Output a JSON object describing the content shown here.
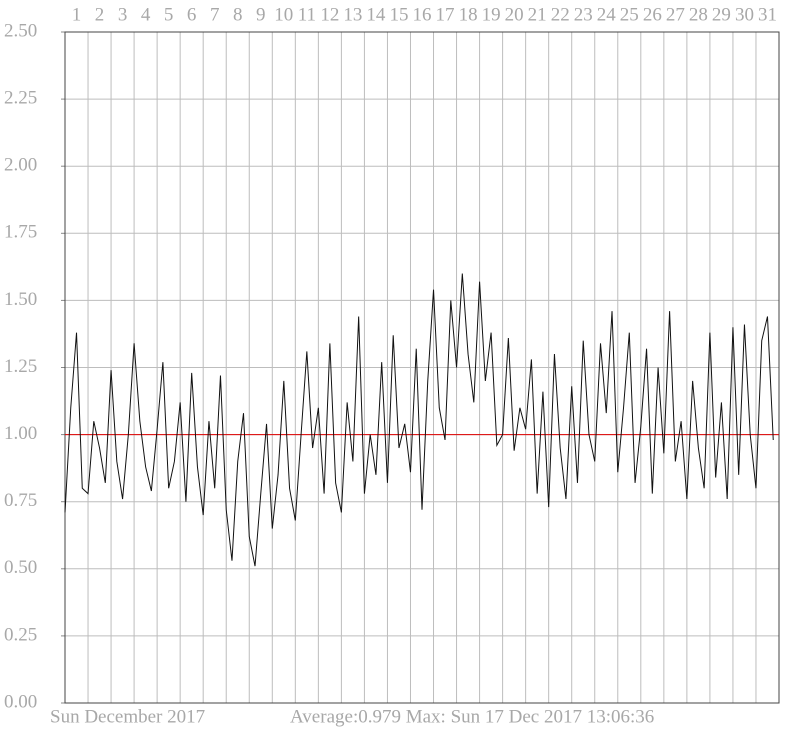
{
  "chart_data": {
    "type": "line",
    "x_label": "Sun  December 2017",
    "annotation": "Average:0.979 Max: Sun 17 Dec 2017  13:06:36",
    "xlim": [
      1,
      32
    ],
    "xticks": [
      1,
      2,
      3,
      4,
      5,
      6,
      7,
      8,
      9,
      10,
      11,
      12,
      13,
      14,
      15,
      16,
      17,
      18,
      19,
      20,
      21,
      22,
      23,
      24,
      25,
      26,
      27,
      28,
      29,
      30,
      31
    ],
    "ylim": [
      0,
      2.5
    ],
    "yticks": [
      {
        "value": 0,
        "label": "0.00"
      },
      {
        "value": 0.25,
        "label": "0.25"
      },
      {
        "value": 0.5,
        "label": "0.50"
      },
      {
        "value": 0.75,
        "label": "0.75"
      },
      {
        "value": 1,
        "label": "1.00"
      },
      {
        "value": 1.25,
        "label": "1.25"
      },
      {
        "value": 1.5,
        "label": "1.50"
      },
      {
        "value": 1.75,
        "label": "1.75"
      },
      {
        "value": 2,
        "label": "2.00"
      },
      {
        "value": 2.25,
        "label": "2.25"
      },
      {
        "value": 2.5,
        "label": "2.50"
      }
    ],
    "grid": true,
    "reference_line": {
      "value": 1,
      "color": "#e00000"
    },
    "x": [
      1,
      1.25,
      1.5,
      1.75,
      2,
      2.25,
      2.5,
      2.75,
      3,
      3.25,
      3.5,
      3.75,
      4,
      4.25,
      4.5,
      4.75,
      5,
      5.25,
      5.5,
      5.75,
      6,
      6.25,
      6.5,
      6.75,
      7,
      7.25,
      7.5,
      7.75,
      8,
      8.25,
      8.5,
      8.75,
      9,
      9.25,
      9.5,
      9.75,
      10,
      10.25,
      10.5,
      10.75,
      11,
      11.25,
      11.5,
      11.75,
      12,
      12.25,
      12.5,
      12.75,
      13,
      13.25,
      13.5,
      13.75,
      14,
      14.25,
      14.5,
      14.75,
      15,
      15.25,
      15.5,
      15.75,
      16,
      16.25,
      16.5,
      16.75,
      17,
      17.25,
      17.5,
      17.75,
      18,
      18.25,
      18.5,
      18.75,
      19,
      19.25,
      19.5,
      19.75,
      20,
      20.25,
      20.5,
      20.75,
      21,
      21.25,
      21.5,
      21.75,
      22,
      22.25,
      22.5,
      22.75,
      23,
      23.25,
      23.5,
      23.75,
      24,
      24.25,
      24.5,
      24.75,
      25,
      25.25,
      25.5,
      25.75,
      26,
      26.25,
      26.5,
      26.75,
      27,
      27.25,
      27.5,
      27.75,
      28,
      28.25,
      28.5,
      28.75,
      29,
      29.25,
      29.5,
      29.75,
      30,
      30.25,
      30.5,
      30.75,
      31,
      31.25,
      31.5,
      31.75
    ],
    "series": [
      {
        "color": "#111111",
        "values": [
          0.71,
          1.1,
          1.38,
          0.8,
          0.78,
          1.05,
          0.95,
          0.82,
          1.24,
          0.9,
          0.76,
          1.0,
          1.34,
          1.05,
          0.88,
          0.79,
          1.02,
          1.27,
          0.8,
          0.9,
          1.12,
          0.75,
          1.23,
          0.88,
          0.7,
          1.05,
          0.8,
          1.22,
          0.72,
          0.53,
          0.9,
          1.08,
          0.62,
          0.51,
          0.78,
          1.04,
          0.65,
          0.85,
          1.2,
          0.8,
          0.68,
          1.0,
          1.31,
          0.95,
          1.1,
          0.78,
          1.34,
          0.82,
          0.71,
          1.12,
          0.9,
          1.44,
          0.78,
          1.0,
          0.85,
          1.27,
          0.82,
          1.37,
          0.95,
          1.04,
          0.86,
          1.32,
          0.72,
          1.2,
          1.54,
          1.1,
          0.98,
          1.5,
          1.25,
          1.6,
          1.3,
          1.12,
          1.57,
          1.2,
          1.38,
          0.96,
          1.0,
          1.36,
          0.94,
          1.1,
          1.02,
          1.28,
          0.78,
          1.16,
          0.73,
          1.3,
          0.95,
          0.76,
          1.18,
          0.82,
          1.35,
          1.0,
          0.9,
          1.34,
          1.08,
          1.46,
          0.86,
          1.1,
          1.38,
          0.82,
          1.03,
          1.32,
          0.78,
          1.25,
          0.93,
          1.46,
          0.9,
          1.05,
          0.76,
          1.2,
          0.95,
          0.8,
          1.38,
          0.84,
          1.12,
          0.76,
          1.4,
          0.85,
          1.41,
          1.0,
          0.8,
          1.35,
          1.44,
          0.98
        ]
      }
    ]
  }
}
